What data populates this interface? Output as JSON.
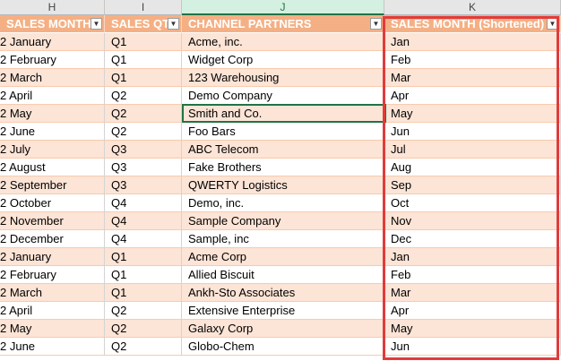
{
  "columns": [
    "H",
    "I",
    "J",
    "K"
  ],
  "table": {
    "headers": [
      "SALES MONTH",
      "SALES QTR",
      "CHANNEL PARTNERS",
      "SALES MONTH (Shortened)"
    ],
    "rows": [
      [
        "January",
        "Q1",
        "Acme, inc.",
        "Jan"
      ],
      [
        "February",
        "Q1",
        "Widget Corp",
        "Feb"
      ],
      [
        "March",
        "Q1",
        "123 Warehousing",
        "Mar"
      ],
      [
        "April",
        "Q2",
        "Demo Company",
        "Apr"
      ],
      [
        "May",
        "Q2",
        "Smith and Co.",
        "May"
      ],
      [
        "June",
        "Q2",
        "Foo Bars",
        "Jun"
      ],
      [
        "July",
        "Q3",
        "ABC Telecom",
        "Jul"
      ],
      [
        "August",
        "Q3",
        "Fake Brothers",
        "Aug"
      ],
      [
        "September",
        "Q3",
        "QWERTY Logistics",
        "Sep"
      ],
      [
        "October",
        "Q4",
        "Demo, inc.",
        "Oct"
      ],
      [
        "November",
        "Q4",
        "Sample Company",
        "Nov"
      ],
      [
        "December",
        "Q4",
        "Sample, inc",
        "Dec"
      ],
      [
        "January",
        "Q1",
        "Acme Corp",
        "Jan"
      ],
      [
        "February",
        "Q1",
        "Allied Biscuit",
        "Feb"
      ],
      [
        "March",
        "Q1",
        "Ankh-Sto Associates",
        "Mar"
      ],
      [
        "April",
        "Q2",
        "Extensive Enterprise",
        "Apr"
      ],
      [
        "May",
        "Q2",
        "Galaxy Corp",
        "May"
      ],
      [
        "June",
        "Q2",
        "Globo-Chem",
        "Jun"
      ]
    ]
  },
  "truncated_prefix": "2",
  "dropdown_glyph": "▼",
  "colors": {
    "header_fill": "#f4b084",
    "band_fill": "#fce4d6",
    "selection": "#217346",
    "highlight_box": "#e03c3c"
  }
}
